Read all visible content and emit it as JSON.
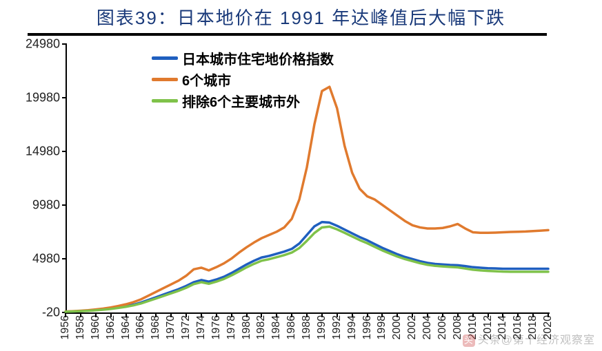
{
  "title": "图表39：日本地价在 1991 年达峰值后大幅下跌",
  "chart": {
    "type": "line",
    "background_color": "#ffffff",
    "title_color": "#1a3a7a",
    "title_fontsize": 26,
    "axis_color": "#000000",
    "label_fontsize": 18,
    "x_label_fontsize": 16,
    "line_width": 3.5,
    "ylim": [
      -20,
      24980
    ],
    "yticks": [
      -20,
      4980,
      9980,
      14980,
      19980,
      24980
    ],
    "year_start": 1956,
    "year_end": 2020,
    "xtick_step": 2,
    "series": [
      {
        "name": "日本城市住宅地价格指数",
        "color": "#1f5fbf",
        "values": [
          60,
          80,
          110,
          150,
          200,
          260,
          340,
          440,
          560,
          700,
          900,
          1150,
          1400,
          1650,
          1900,
          2150,
          2450,
          2800,
          3000,
          2850,
          3050,
          3300,
          3650,
          4050,
          4450,
          4800,
          5100,
          5250,
          5450,
          5650,
          5900,
          6400,
          7200,
          8000,
          8400,
          8350,
          8050,
          7700,
          7350,
          7000,
          6700,
          6350,
          6000,
          5700,
          5400,
          5150,
          4950,
          4750,
          4600,
          4500,
          4450,
          4400,
          4380,
          4300,
          4200,
          4150,
          4100,
          4080,
          4050,
          4050,
          4050,
          4050,
          4050,
          4050,
          4050
        ]
      },
      {
        "name": "6个城市",
        "color": "#e07a2e",
        "values": [
          70,
          100,
          140,
          190,
          260,
          340,
          450,
          580,
          740,
          940,
          1200,
          1550,
          1900,
          2250,
          2600,
          2950,
          3400,
          4000,
          4150,
          3900,
          4200,
          4550,
          5000,
          5550,
          6050,
          6500,
          6900,
          7200,
          7500,
          7900,
          8700,
          10500,
          13500,
          17500,
          20600,
          21000,
          19000,
          15500,
          13000,
          11500,
          10800,
          10500,
          10000,
          9500,
          9000,
          8500,
          8100,
          7900,
          7800,
          7800,
          7850,
          8000,
          8220,
          7800,
          7450,
          7400,
          7400,
          7420,
          7450,
          7480,
          7500,
          7520,
          7560,
          7600,
          7650
        ]
      },
      {
        "name": "排除6个主要城市外",
        "color": "#7fc24a",
        "values": [
          55,
          75,
          100,
          135,
          180,
          235,
          305,
          400,
          510,
          640,
          820,
          1050,
          1280,
          1520,
          1760,
          2000,
          2280,
          2620,
          2800,
          2650,
          2850,
          3100,
          3430,
          3800,
          4180,
          4510,
          4800,
          4940,
          5130,
          5320,
          5560,
          5980,
          6650,
          7380,
          7900,
          7980,
          7720,
          7400,
          7060,
          6720,
          6430,
          6090,
          5760,
          5470,
          5190,
          4950,
          4760,
          4570,
          4420,
          4320,
          4270,
          4220,
          4180,
          4070,
          3960,
          3900,
          3850,
          3820,
          3785,
          3770,
          3770,
          3770,
          3770,
          3770,
          3770
        ]
      }
    ]
  },
  "legend": {
    "items": [
      {
        "label": "日本城市住宅地价格指数",
        "color": "#1f5fbf"
      },
      {
        "label": "6个城市",
        "color": "#e07a2e"
      },
      {
        "label": "排除6个主要城市外",
        "color": "#7fc24a"
      }
    ],
    "fontsize": 20,
    "font_weight": "bold"
  },
  "watermark": {
    "icon_glyph": "头",
    "text": "头条@第十经济观察室",
    "opacity": 0.25
  }
}
